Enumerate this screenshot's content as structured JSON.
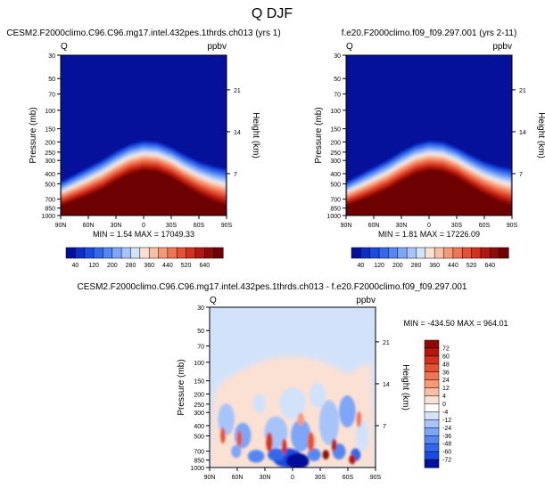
{
  "page_title": "Q DJF",
  "chart_data": [
    {
      "type": "heatmap",
      "panel": "upper-left",
      "title": "CESM2.F2000climo.C96.C96.mg17.intel.432pes.1thrds.ch013 (yrs 1)",
      "variable_label": "Q",
      "units_label": "ppbv",
      "ylabel": "Pressure (mb)",
      "y2label": "Height (km)",
      "xlabel": "",
      "x_ticks": [
        "90N",
        "60N",
        "30N",
        "0",
        "30S",
        "60S",
        "90S"
      ],
      "x_range": [
        90,
        -90
      ],
      "y_ticks": [
        30,
        50,
        70,
        100,
        150,
        200,
        250,
        300,
        400,
        500,
        700,
        850,
        1000
      ],
      "y_range": [
        30,
        1000
      ],
      "y_scale": "log",
      "y2_ticks": [
        21,
        14,
        7
      ],
      "stats_text": "MIN =   1.54  MAX = 17049.33",
      "colorbar_labels": [
        "40",
        "120",
        "200",
        "280",
        "360",
        "440",
        "520",
        "640"
      ],
      "colorbar_levels": [
        20,
        40,
        80,
        120,
        160,
        200,
        240,
        280,
        320,
        360,
        400,
        440,
        480,
        520,
        580,
        640
      ],
      "colorbar_colors": [
        "#03109a",
        "#0c2ec6",
        "#1a4be0",
        "#3268ec",
        "#5587f3",
        "#7ea6f7",
        "#a7c4fa",
        "#d3e2fb",
        "#fbe1d3",
        "#f7bfa5",
        "#f49a78",
        "#ee7653",
        "#e45133",
        "#d1311f",
        "#b3170f",
        "#8e0a05",
        "#6d0203"
      ],
      "field_background": "#05119b",
      "contour_profile": [
        {
          "lat": 90,
          "p_top": 470,
          "p_mid": 650,
          "p_high": 800
        },
        {
          "lat": 75,
          "p_top": 400,
          "p_mid": 560,
          "p_high": 720
        },
        {
          "lat": 60,
          "p_top": 340,
          "p_mid": 480,
          "p_high": 640
        },
        {
          "lat": 45,
          "p_top": 290,
          "p_mid": 410,
          "p_high": 560
        },
        {
          "lat": 30,
          "p_top": 240,
          "p_mid": 340,
          "p_high": 470
        },
        {
          "lat": 15,
          "p_top": 205,
          "p_mid": 290,
          "p_high": 400
        },
        {
          "lat": 0,
          "p_top": 190,
          "p_mid": 270,
          "p_high": 370
        },
        {
          "lat": -15,
          "p_top": 195,
          "p_mid": 275,
          "p_high": 380
        },
        {
          "lat": -30,
          "p_top": 220,
          "p_mid": 310,
          "p_high": 430
        },
        {
          "lat": -45,
          "p_top": 260,
          "p_mid": 370,
          "p_high": 520
        },
        {
          "lat": -60,
          "p_top": 300,
          "p_mid": 430,
          "p_high": 620
        },
        {
          "lat": -75,
          "p_top": 330,
          "p_mid": 500,
          "p_high": 720
        },
        {
          "lat": -90,
          "p_top": 350,
          "p_mid": 540,
          "p_high": 800
        }
      ]
    },
    {
      "type": "heatmap",
      "panel": "upper-right",
      "title": "f.e20.F2000climo.f09_f09.297.001 (yrs 2-11)",
      "variable_label": "Q",
      "units_label": "ppbv",
      "ylabel": "Pressure (mb)",
      "y2label": "Height (km)",
      "xlabel": "",
      "x_ticks": [
        "90N",
        "60N",
        "30N",
        "0",
        "30S",
        "60S",
        "90S"
      ],
      "x_range": [
        90,
        -90
      ],
      "y_ticks": [
        30,
        50,
        70,
        100,
        150,
        200,
        250,
        300,
        400,
        500,
        700,
        850,
        1000
      ],
      "y_range": [
        30,
        1000
      ],
      "y_scale": "log",
      "y2_ticks": [
        21,
        14,
        7
      ],
      "stats_text": "MIN =   1.81  MAX = 17226.09",
      "colorbar_labels": [
        "40",
        "120",
        "200",
        "280",
        "360",
        "440",
        "520",
        "640"
      ],
      "colorbar_levels": [
        20,
        40,
        80,
        120,
        160,
        200,
        240,
        280,
        320,
        360,
        400,
        440,
        480,
        520,
        580,
        640
      ],
      "colorbar_colors": [
        "#03109a",
        "#0c2ec6",
        "#1a4be0",
        "#3268ec",
        "#5587f3",
        "#7ea6f7",
        "#a7c4fa",
        "#d3e2fb",
        "#fbe1d3",
        "#f7bfa5",
        "#f49a78",
        "#ee7653",
        "#e45133",
        "#d1311f",
        "#b3170f",
        "#8e0a05",
        "#6d0203"
      ],
      "field_background": "#05119b",
      "contour_profile": [
        {
          "lat": 90,
          "p_top": 470,
          "p_mid": 650,
          "p_high": 800
        },
        {
          "lat": 75,
          "p_top": 400,
          "p_mid": 560,
          "p_high": 720
        },
        {
          "lat": 60,
          "p_top": 340,
          "p_mid": 480,
          "p_high": 640
        },
        {
          "lat": 45,
          "p_top": 290,
          "p_mid": 410,
          "p_high": 560
        },
        {
          "lat": 30,
          "p_top": 240,
          "p_mid": 340,
          "p_high": 470
        },
        {
          "lat": 15,
          "p_top": 205,
          "p_mid": 290,
          "p_high": 400
        },
        {
          "lat": 0,
          "p_top": 190,
          "p_mid": 270,
          "p_high": 370
        },
        {
          "lat": -15,
          "p_top": 195,
          "p_mid": 275,
          "p_high": 380
        },
        {
          "lat": -30,
          "p_top": 220,
          "p_mid": 310,
          "p_high": 430
        },
        {
          "lat": -45,
          "p_top": 260,
          "p_mid": 370,
          "p_high": 520
        },
        {
          "lat": -60,
          "p_top": 300,
          "p_mid": 430,
          "p_high": 620
        },
        {
          "lat": -75,
          "p_top": 330,
          "p_mid": 500,
          "p_high": 720
        },
        {
          "lat": -90,
          "p_top": 350,
          "p_mid": 540,
          "p_high": 800
        }
      ]
    },
    {
      "type": "heatmap",
      "panel": "bottom-difference",
      "title": "CESM2.F2000climo.C96.C96.mg17.intel.432pes.1thrds.ch013 - f.e20.F2000climo.f09_f09.297.001",
      "variable_label": "Q",
      "units_label": "ppbv",
      "ylabel": "Pressure (mb)",
      "y2label": "Height (km)",
      "xlabel": "",
      "x_ticks": [
        "90N",
        "60N",
        "30N",
        "0",
        "30S",
        "60S",
        "90S"
      ],
      "x_range": [
        90,
        -90
      ],
      "y_ticks": [
        30,
        50,
        70,
        100,
        150,
        200,
        250,
        300,
        400,
        500,
        700,
        850,
        1000
      ],
      "y_range": [
        30,
        1000
      ],
      "y_scale": "log",
      "y2_ticks": [
        21,
        14,
        7
      ],
      "stats_text": "MIN = -434.50  MAX = 964.01",
      "colorbar_labels": [
        "72",
        "60",
        "48",
        "36",
        "24",
        "12",
        "4",
        "0",
        "-4",
        "-12",
        "-24",
        "-36",
        "-48",
        "-60",
        "-72"
      ],
      "colorbar_colors": [
        "#8e0a05",
        "#b3170f",
        "#d1311f",
        "#e45133",
        "#ee7653",
        "#f49a78",
        "#f7bfa5",
        "#fbe1d3",
        "#ffffff",
        "#d3e2fb",
        "#a7c4fa",
        "#7ea6f7",
        "#5587f3",
        "#3268ec",
        "#1a4be0",
        "#03109a"
      ],
      "field_background": "#d3e2fb",
      "positive_band": [
        {
          "lat": 90,
          "p_top": 1000
        },
        {
          "lat": 85,
          "p_top": 200
        },
        {
          "lat": 75,
          "p_top": 150
        },
        {
          "lat": 60,
          "p_top": 125
        },
        {
          "lat": 45,
          "p_top": 108
        },
        {
          "lat": 30,
          "p_top": 95
        },
        {
          "lat": 15,
          "p_top": 90
        },
        {
          "lat": 0,
          "p_top": 88
        },
        {
          "lat": -15,
          "p_top": 90
        },
        {
          "lat": -30,
          "p_top": 97
        },
        {
          "lat": -45,
          "p_top": 110
        },
        {
          "lat": -60,
          "p_top": 130
        },
        {
          "lat": -75,
          "p_top": 110
        },
        {
          "lat": -85,
          "p_top": 100
        },
        {
          "lat": -90,
          "p_top": 1000
        }
      ]
    }
  ]
}
